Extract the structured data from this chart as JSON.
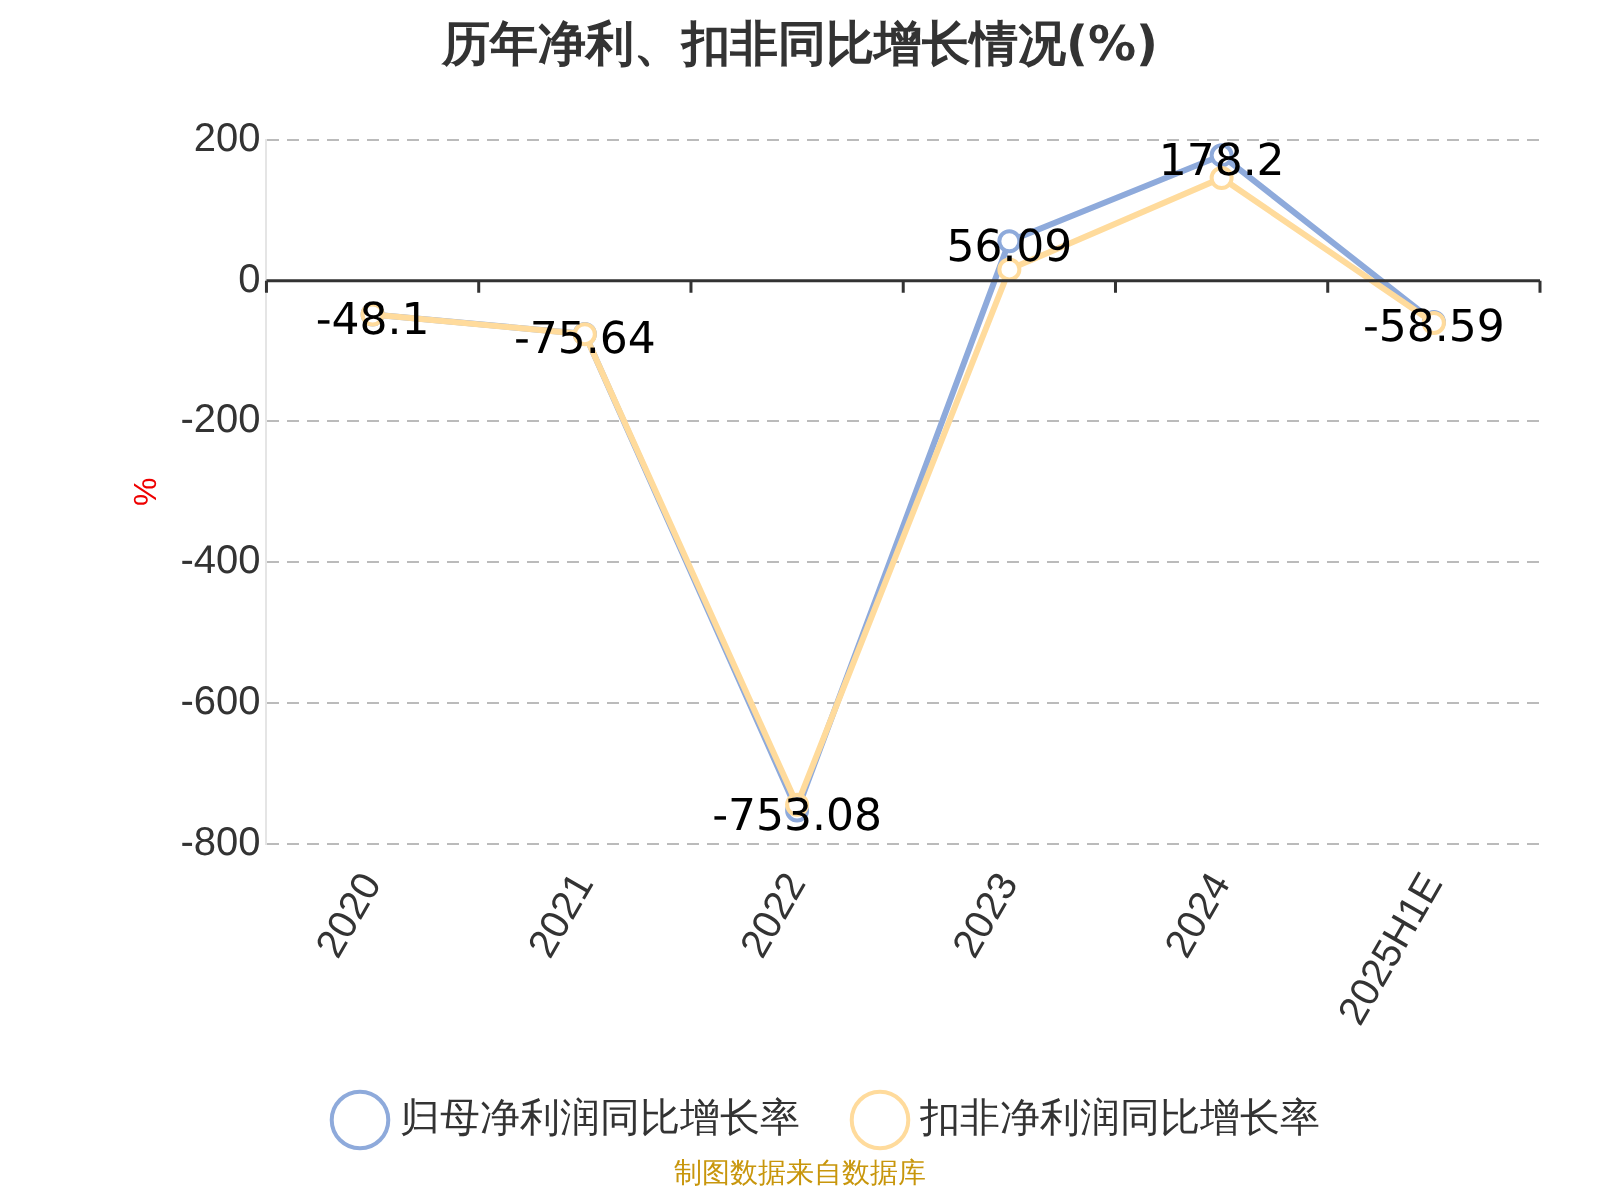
{
  "chart_data": {
    "type": "line",
    "title": "历年净利、扣非同比增长情况(%)",
    "ylabel": "%",
    "categories": [
      "2020",
      "2021",
      "2022",
      "2023",
      "2024",
      "2025H1E"
    ],
    "series": [
      {
        "name": "归母净利润同比增长率",
        "color": "#8eaadb",
        "values": [
          -48.1,
          -75.64,
          -753.08,
          56.09,
          178.2,
          -58.59
        ],
        "value_labels": [
          "-48.1",
          "-75.64",
          "-753.08",
          "56.09",
          "178.2",
          "-58.59"
        ]
      },
      {
        "name": "扣非净利润同比增长率",
        "color": "#ffdb9c",
        "values": [
          -48,
          -76,
          -745,
          16,
          146,
          -60
        ]
      }
    ],
    "ylim": [
      -800,
      200
    ],
    "yticks": [
      -800,
      -600,
      -400,
      -200,
      0,
      200
    ],
    "grid": "y",
    "legend": "bottom",
    "marker": "circle",
    "line_style": "solid",
    "annotations": [
      "制图数据来自数据库"
    ]
  }
}
